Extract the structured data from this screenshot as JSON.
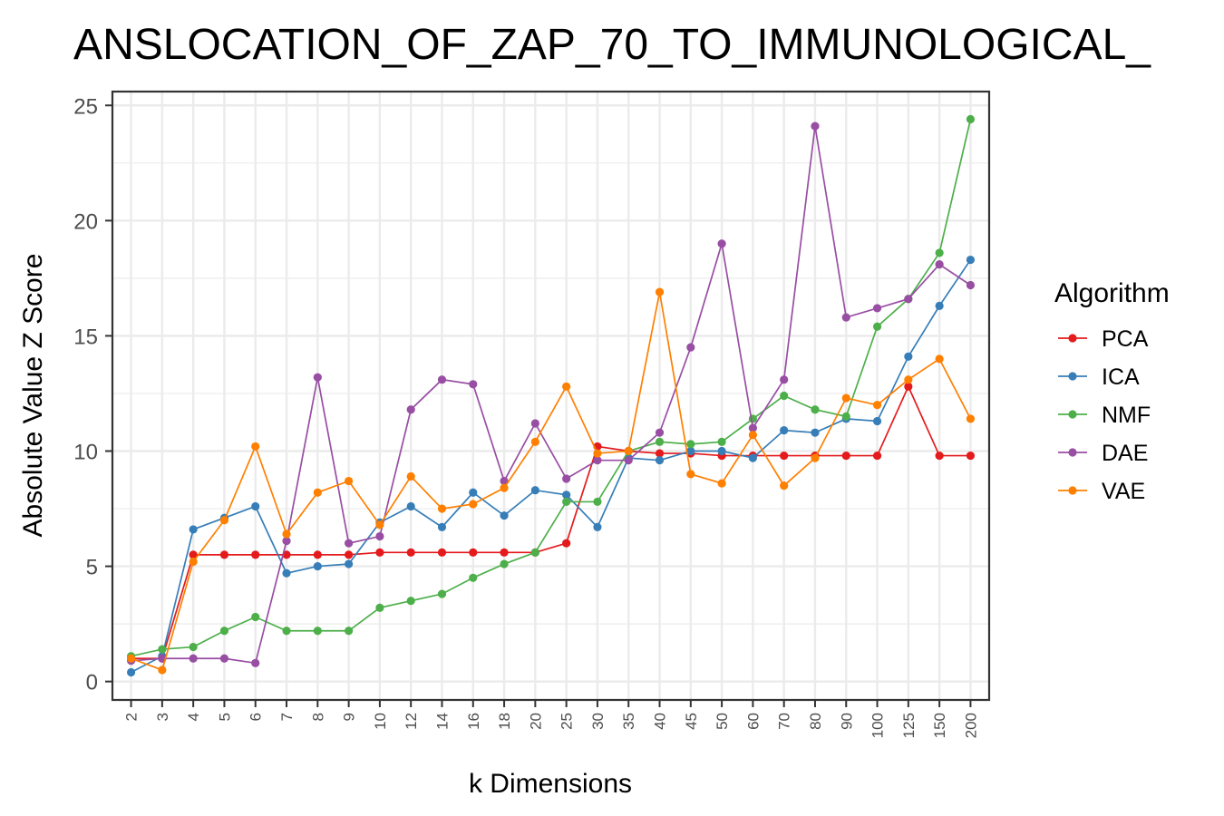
{
  "chart_data": {
    "type": "line",
    "title": "ANSLOCATION_OF_ZAP_70_TO_IMMUNOLOGICAL_",
    "xlabel": "k Dimensions",
    "ylabel": "Absolute Value Z Score",
    "ylim": [
      -0.8,
      25.6
    ],
    "yticks": [
      0,
      5,
      10,
      15,
      20,
      25
    ],
    "grid": true,
    "legend_title": "Algorithm",
    "legend_position": "right",
    "categories": [
      "2",
      "3",
      "4",
      "5",
      "6",
      "7",
      "8",
      "9",
      "10",
      "12",
      "14",
      "16",
      "18",
      "20",
      "25",
      "30",
      "35",
      "40",
      "45",
      "50",
      "60",
      "70",
      "80",
      "90",
      "100",
      "125",
      "150",
      "200"
    ],
    "series": [
      {
        "name": "PCA",
        "color": "#e41a1c",
        "values": [
          1.0,
          1.0,
          5.5,
          5.5,
          5.5,
          5.5,
          5.5,
          5.5,
          5.6,
          5.6,
          5.6,
          5.6,
          5.6,
          5.6,
          6.0,
          10.2,
          10.0,
          9.9,
          9.9,
          9.8,
          9.8,
          9.8,
          9.8,
          9.8,
          9.8,
          12.8,
          9.8,
          9.8
        ]
      },
      {
        "name": "ICA",
        "color": "#377eb8",
        "values": [
          0.4,
          1.1,
          6.6,
          7.1,
          7.6,
          4.7,
          5.0,
          5.1,
          6.9,
          7.6,
          6.7,
          8.2,
          7.2,
          8.3,
          8.1,
          6.7,
          9.7,
          9.6,
          10.0,
          10.0,
          9.7,
          10.9,
          10.8,
          11.4,
          11.3,
          14.1,
          16.3,
          18.3
        ]
      },
      {
        "name": "NMF",
        "color": "#4daf4a",
        "values": [
          1.1,
          1.4,
          1.5,
          2.2,
          2.8,
          2.2,
          2.2,
          2.2,
          3.2,
          3.5,
          3.8,
          4.5,
          5.1,
          5.6,
          7.8,
          7.8,
          10.0,
          10.4,
          10.3,
          10.4,
          11.4,
          12.4,
          11.8,
          11.5,
          15.4,
          16.6,
          18.6,
          24.4
        ]
      },
      {
        "name": "DAE",
        "color": "#984ea3",
        "values": [
          0.9,
          1.0,
          1.0,
          1.0,
          0.8,
          6.1,
          13.2,
          6.0,
          6.3,
          11.8,
          13.1,
          12.9,
          8.7,
          11.2,
          8.8,
          9.6,
          9.6,
          10.8,
          14.5,
          19.0,
          11.0,
          13.1,
          24.1,
          15.8,
          16.2,
          16.6,
          18.1,
          17.2
        ]
      },
      {
        "name": "VAE",
        "color": "#ff7f00",
        "values": [
          1.0,
          0.5,
          5.2,
          7.0,
          10.2,
          6.4,
          8.2,
          8.7,
          6.8,
          8.9,
          7.5,
          7.7,
          8.4,
          10.4,
          12.8,
          9.9,
          10.0,
          16.9,
          9.0,
          8.6,
          10.7,
          8.5,
          9.7,
          12.3,
          12.0,
          13.1,
          14.0,
          11.4
        ]
      }
    ]
  }
}
